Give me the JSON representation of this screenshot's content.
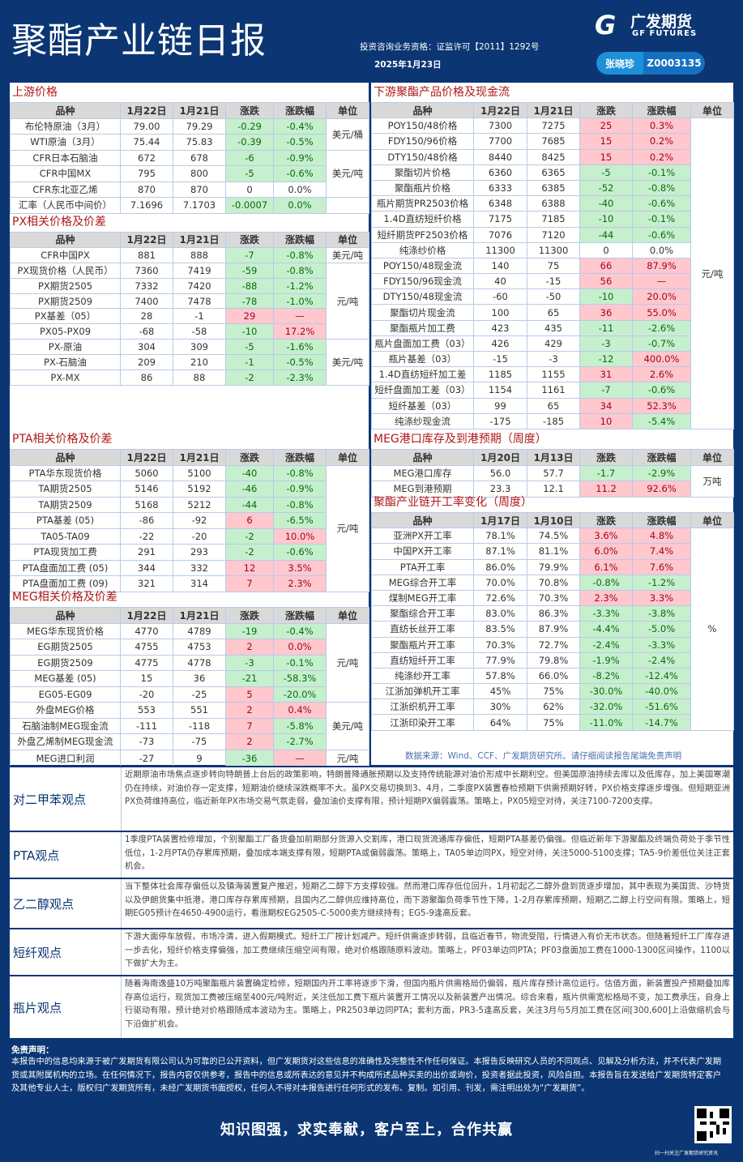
{
  "header": {
    "title": "聚酯产业链日报",
    "license": "投资咨询业务资格：证监许可【2011】1292号",
    "date": "2025年1月23日",
    "logo_cn": "广发期货",
    "logo_en": "GF FUTURES",
    "author": "张晓珍",
    "author_code": "Z0003135"
  },
  "colors": {
    "background": "#0b3673",
    "up_bg": "#ffc7ce",
    "up_text": "#a0061a",
    "down_bg": "#c6efce",
    "down_text": "#0a6b0a",
    "section_title": "#b01818"
  },
  "tables": {
    "upstream": {
      "title": "上游价格",
      "headers": [
        "品种",
        "1月22日",
        "1月21日",
        "涨跌",
        "涨跌幅",
        "单位"
      ],
      "rows": [
        [
          "布伦特原油（3月）",
          "79.00",
          "79.29",
          "-0.29",
          "-0.4%",
          "g",
          "g"
        ],
        [
          "WTI原油（3月）",
          "75.44",
          "75.83",
          "-0.39",
          "-0.5%",
          "g",
          "g"
        ],
        [
          "CFR日本石脑油",
          "672",
          "678",
          "-6",
          "-0.9%",
          "g",
          "g"
        ],
        [
          "CFR中国MX",
          "795",
          "800",
          "-5",
          "-0.6%",
          "g",
          "g"
        ],
        [
          "CFR东北亚乙烯",
          "870",
          "870",
          "0",
          "0.0%",
          "n",
          "n"
        ],
        [
          "汇率（人民币中间价）",
          "7.1696",
          "7.1703",
          "-0.0007",
          "0.0%",
          "g",
          "g"
        ]
      ],
      "units": [
        [
          "美元/桶",
          2
        ],
        [
          "美元/吨",
          3
        ],
        [
          "",
          1
        ]
      ]
    },
    "px": {
      "title": "PX相关价格及价差",
      "headers": [
        "品种",
        "1月22日",
        "1月21日",
        "涨跌",
        "涨跌幅",
        "单位"
      ],
      "rows": [
        [
          "CFR中国PX",
          "881",
          "888",
          "-7",
          "-0.8%",
          "g",
          "g"
        ],
        [
          "PX现货价格（人民币）",
          "7360",
          "7419",
          "-59",
          "-0.8%",
          "g",
          "g"
        ],
        [
          "PX期货2505",
          "7332",
          "7420",
          "-88",
          "-1.2%",
          "g",
          "g"
        ],
        [
          "PX期货2509",
          "7400",
          "7478",
          "-78",
          "-1.0%",
          "g",
          "g"
        ],
        [
          "PX基差（05）",
          "28",
          "-1",
          "29",
          "—",
          "r",
          "r"
        ],
        [
          "PX05-PX09",
          "-68",
          "-58",
          "-10",
          "17.2%",
          "g",
          "r"
        ],
        [
          "PX-原油",
          "304",
          "309",
          "-5",
          "-1.6%",
          "g",
          "g"
        ],
        [
          "PX-石脑油",
          "209",
          "210",
          "-1",
          "-0.5%",
          "g",
          "g"
        ],
        [
          "PX-MX",
          "86",
          "88",
          "-2",
          "-2.3%",
          "g",
          "g"
        ]
      ],
      "units": [
        [
          "美元/吨",
          1
        ],
        [
          "元/吨",
          5
        ],
        [
          "美元/吨",
          3
        ]
      ]
    },
    "pta": {
      "title": "PTA相关价格及价差",
      "headers": [
        "品种",
        "1月22日",
        "1月21日",
        "涨跌",
        "涨跌幅",
        "单位"
      ],
      "rows": [
        [
          "PTA华东现货价格",
          "5060",
          "5100",
          "-40",
          "-0.8%",
          "g",
          "g"
        ],
        [
          "TA期货2505",
          "5146",
          "5192",
          "-46",
          "-0.9%",
          "g",
          "g"
        ],
        [
          "TA期货2509",
          "5168",
          "5212",
          "-44",
          "-0.8%",
          "g",
          "g"
        ],
        [
          "PTA基差 (05)",
          "-86",
          "-92",
          "6",
          "-6.5%",
          "r",
          "g"
        ],
        [
          "TA05-TA09",
          "-22",
          "-20",
          "-2",
          "10.0%",
          "g",
          "r"
        ],
        [
          "PTA现货加工费",
          "291",
          "293",
          "-2",
          "-0.6%",
          "g",
          "g"
        ],
        [
          "PTA盘面加工费 (05)",
          "344",
          "332",
          "12",
          "3.5%",
          "r",
          "r"
        ],
        [
          "PTA盘面加工费 (09)",
          "321",
          "314",
          "7",
          "2.3%",
          "r",
          "r"
        ]
      ],
      "units": [
        [
          "元/吨",
          8
        ]
      ]
    },
    "meg": {
      "title": "MEG相关价格及价差",
      "headers": [
        "品种",
        "1月22日",
        "1月21日",
        "涨跌",
        "涨跌幅",
        "单位"
      ],
      "rows": [
        [
          "MEG华东现货价格",
          "4770",
          "4789",
          "-19",
          "-0.4%",
          "g",
          "g"
        ],
        [
          "EG期货2505",
          "4755",
          "4753",
          "2",
          "0.0%",
          "r",
          "r"
        ],
        [
          "EG期货2509",
          "4775",
          "4778",
          "-3",
          "-0.1%",
          "g",
          "g"
        ],
        [
          "MEG基差 (05)",
          "15",
          "36",
          "-21",
          "-58.3%",
          "g",
          "g"
        ],
        [
          "EG05-EG09",
          "-20",
          "-25",
          "5",
          "-20.0%",
          "r",
          "g"
        ],
        [
          "外盘MEG价格",
          "553",
          "551",
          "2",
          "0.4%",
          "r",
          "r"
        ],
        [
          "石脑油制MEG现金流",
          "-111",
          "-118",
          "7",
          "-5.8%",
          "r",
          "g"
        ],
        [
          "外盘乙烯制MEG现金流",
          "-73",
          "-75",
          "2",
          "-2.7%",
          "r",
          "g"
        ],
        [
          "MEG进口利润",
          "-27",
          "9",
          "-36",
          "—",
          "g",
          "r"
        ]
      ],
      "units": [
        [
          "元/吨",
          5
        ],
        [
          "美元/吨",
          3
        ],
        [
          "元/吨",
          1
        ]
      ]
    },
    "downstream": {
      "title": "下游聚酯产品价格及现金流",
      "headers": [
        "品种",
        "1月22日",
        "1月21日",
        "涨跌",
        "涨跌幅",
        "单位"
      ],
      "rows": [
        [
          "POY150/48价格",
          "7300",
          "7275",
          "25",
          "0.3%",
          "r",
          "r"
        ],
        [
          "FDY150/96价格",
          "7700",
          "7685",
          "15",
          "0.2%",
          "r",
          "r"
        ],
        [
          "DTY150/48价格",
          "8440",
          "8425",
          "15",
          "0.2%",
          "r",
          "r"
        ],
        [
          "聚酯切片价格",
          "6360",
          "6365",
          "-5",
          "-0.1%",
          "g",
          "g"
        ],
        [
          "聚酯瓶片价格",
          "6333",
          "6385",
          "-52",
          "-0.8%",
          "g",
          "g"
        ],
        [
          "瓶片期货PR2503价格",
          "6348",
          "6388",
          "-40",
          "-0.6%",
          "g",
          "g"
        ],
        [
          "1.4D直纺短纤价格",
          "7175",
          "7185",
          "-10",
          "-0.1%",
          "g",
          "g"
        ],
        [
          "短纤期货PF2503价格",
          "7076",
          "7120",
          "-44",
          "-0.6%",
          "g",
          "g"
        ],
        [
          "纯涤纱价格",
          "11300",
          "11300",
          "0",
          "0.0%",
          "n",
          "n"
        ],
        [
          "POY150/48现金流",
          "140",
          "75",
          "66",
          "87.9%",
          "r",
          "r"
        ],
        [
          "FDY150/96现金流",
          "40",
          "-15",
          "56",
          "—",
          "r",
          "r"
        ],
        [
          "DTY150/48现金流",
          "-60",
          "-50",
          "-10",
          "20.0%",
          "g",
          "r"
        ],
        [
          "聚酯切片现金流",
          "100",
          "65",
          "36",
          "55.0%",
          "r",
          "r"
        ],
        [
          "聚酯瓶片加工费",
          "423",
          "435",
          "-11",
          "-2.6%",
          "g",
          "g"
        ],
        [
          "瓶片盘面加工费（03）",
          "426",
          "429",
          "-3",
          "-0.7%",
          "g",
          "g"
        ],
        [
          "瓶片基差（03）",
          "-15",
          "-3",
          "-12",
          "400.0%",
          "g",
          "r"
        ],
        [
          "1.4D直纺短纤加工差",
          "1185",
          "1155",
          "31",
          "2.6%",
          "r",
          "r"
        ],
        [
          "短纤盘面加工差（03）",
          "1154",
          "1161",
          "-7",
          "-0.6%",
          "g",
          "g"
        ],
        [
          "短纤基差（03）",
          "99",
          "65",
          "34",
          "52.3%",
          "r",
          "r"
        ],
        [
          "纯涤纱现金流",
          "-175",
          "-185",
          "10",
          "-5.4%",
          "r",
          "g"
        ]
      ],
      "units": [
        [
          "元/吨",
          20
        ]
      ]
    },
    "meg_port": {
      "title": "MEG港口库存及到港预期（周度）",
      "headers": [
        "品种",
        "1月20日",
        "1月13日",
        "涨跌",
        "涨跌幅",
        "单位"
      ],
      "rows": [
        [
          "MEG港口库存",
          "56.0",
          "57.7",
          "-1.7",
          "-2.9%",
          "g",
          "g"
        ],
        [
          "MEG到港预期",
          "23.3",
          "12.1",
          "11.2",
          "92.6%",
          "r",
          "r"
        ]
      ],
      "units": [
        [
          "万吨",
          2
        ]
      ]
    },
    "operating": {
      "title": "聚酯产业链开工率变化（周度）",
      "headers": [
        "品种",
        "1月17日",
        "1月10日",
        "涨跌",
        "涨跌幅",
        "单位"
      ],
      "rows": [
        [
          "亚洲PX开工率",
          "78.1%",
          "74.5%",
          "3.6%",
          "4.8%",
          "r",
          "r"
        ],
        [
          "中国PX开工率",
          "87.1%",
          "81.1%",
          "6.0%",
          "7.4%",
          "r",
          "r"
        ],
        [
          "PTA开工率",
          "86.0%",
          "79.9%",
          "6.1%",
          "7.6%",
          "r",
          "r"
        ],
        [
          "MEG综合开工率",
          "70.0%",
          "70.8%",
          "-0.8%",
          "-1.2%",
          "g",
          "g"
        ],
        [
          "煤制MEG开工率",
          "72.6%",
          "70.3%",
          "2.3%",
          "3.3%",
          "r",
          "r"
        ],
        [
          "聚酯综合开工率",
          "83.0%",
          "86.3%",
          "-3.3%",
          "-3.8%",
          "g",
          "g"
        ],
        [
          "直纺长丝开工率",
          "83.5%",
          "87.9%",
          "-4.4%",
          "-5.0%",
          "g",
          "g"
        ],
        [
          "聚酯瓶片开工率",
          "70.3%",
          "72.7%",
          "-2.4%",
          "-3.3%",
          "g",
          "g"
        ],
        [
          "直纺短纤开工率",
          "77.9%",
          "79.8%",
          "-1.9%",
          "-2.4%",
          "g",
          "g"
        ],
        [
          "纯涤纱开工率",
          "57.8%",
          "66.0%",
          "-8.2%",
          "-12.4%",
          "g",
          "g"
        ],
        [
          "江浙加弹机开工率",
          "45%",
          "75%",
          "-30.0%",
          "-40.0%",
          "g",
          "g"
        ],
        [
          "江浙织机开工率",
          "30%",
          "62%",
          "-32.0%",
          "-51.6%",
          "g",
          "g"
        ],
        [
          "江浙印染开工率",
          "64%",
          "75%",
          "-11.0%",
          "-14.7%",
          "g",
          "g"
        ]
      ],
      "units": [
        [
          "%",
          13
        ]
      ]
    }
  },
  "source": "数据来源：Wind、CCF、广发期货研究所。请仔细阅读报告尾端免责声明",
  "views": [
    {
      "label": "对二甲苯观点",
      "text": "近期原油市场焦点逐步转向特朗普上台后的政策影响，特朗普降通胀预期以及支持传统能源对油价形成中长期利空。但美国原油持续去库以及低库存，加上美国寒潮仍在持续，对油价存一定支撑，短期油价继续深跌概率不大。虽PX交易切换到3、4月，二季度PX装置春检预期下供需预期好转，PX价格支撑逐步增强。但短期亚洲PX负荷维持高位，临近新年PX市场交易气氛走弱，叠加油价支撑有限，预计短期PX偏弱震荡。策略上，PX05短空对待，关注7100-7200支撑。"
    },
    {
      "label": "PTA观点",
      "text": "1季度PTA装置检修增加，个别聚酯工厂备货叠加前期部分货源入交割库，港口现货流通库存偏低，短期PTA基差仍偏强。但临近新年下游聚酯及终端负荷处于季节性低位，1-2月PTA仍存累库预期，叠加成本端支撑有限，短期PTA或偏弱震荡。策略上，TA05单边同PX，短空对待，关注5000-5100支撑；TA5-9价差低位关注正套机会。"
    },
    {
      "label": "乙二醇观点",
      "text": "当下整体社会库存偏低以及镇海装置复产推迟，短期乙二醇下方支撑较强。然而港口库存低位回升，1月初起乙二醇外盘到货逐步增加，其中表现为美国货、沙特货以及伊朗货集中抵港，港口库存存累库预期，且国内乙二醇供应维持高位，而下游聚酯负荷季节性下降，1-2月存累库预期，短期乙二醇上行空间有限。策略上，短期EG05预计在4650-4900运行，看涨期权EG2505-C-5000卖方继续持有；EG5-9逢高反套。"
    },
    {
      "label": "短纤观点",
      "text": "下游大面停车放假，市场冷清，进入假期模式。短纤工厂按计划减产。短纤供需逐步转弱，且临近春节，物流受阻，行情进入有价无市状态。但随着短纤工厂库存进一步去化，短纤价格支撑偏强，加工费继续压缩空间有限，绝对价格跟随原料波动。策略上，PF03单边同PTA；PF03盘面加工费在1000-1300区间操作，1100以下做扩大为主。"
    },
    {
      "label": "瓶片观点",
      "text": "随着海南逸盛10万吨聚酯瓶片装置确定检修，短期国内开工率将逐步下滑，但国内瓶片供需格局仍偏弱，瓶片库存预计高位运行。估值方面，新装置投产预期叠加库存高位运行，现货加工费被压缩至400元/吨附近，关注低加工费下瓶片装置开工情况以及新装置产出情况。综合来看，瓶片供需宽松格局不变，加工费承压，自身上行驱动有限，预计绝对价格跟随成本波动为主。策略上，PR2503单边同PTA；套利方面，PR3-5逢高反套，关注3月与5月加工费在区间[300,600]上沿做缩机会与下沿做扩机会。"
    }
  ],
  "disclaimer": {
    "title": "免责声明：",
    "text": "本报告中的信息均来源于被广发期货有限公司认为可靠的已公开资料，但广发期货对这些信息的准确性及完整性不作任何保证。本报告反映研究人员的不同观点、见解及分析方法，并不代表广发期货或其附属机构的立场。在任何情况下，报告内容仅供参考，报告中的信息或所表达的意见并不构成所述品种买卖的出价或询价，投资者据此投资，风险自担。本报告旨在发送给广发期货特定客户及其他专业人士，版权归广发期货所有，未经广发期货书面授权，任何人不得对本报告进行任何形式的发布、复制。如引用、刊发，需注明出处为“广发期货”。"
  },
  "footer": {
    "slogan": "知识图强，求实奉献，客户至上，合作共赢",
    "qr_caption": "扫一扫关注广发期货研究资讯"
  }
}
